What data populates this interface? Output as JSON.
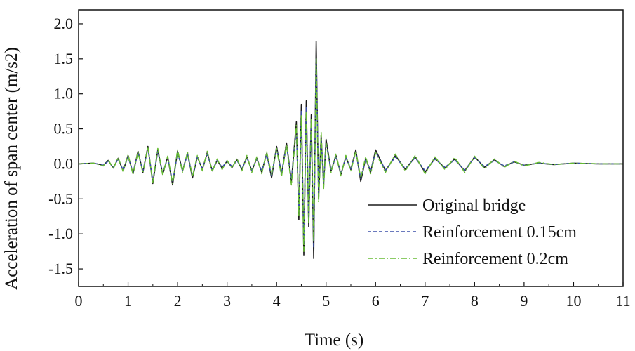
{
  "chart_data": {
    "type": "line",
    "title": "",
    "xlabel": "Time (s)",
    "ylabel": "Acceleration of span center (m/s2)",
    "xlim": [
      0,
      11
    ],
    "ylim": [
      -1.75,
      2.2
    ],
    "xticks": [
      "0",
      "1",
      "2",
      "3",
      "4",
      "5",
      "6",
      "7",
      "8",
      "9",
      "10",
      "11"
    ],
    "yticks": [
      "-1.5",
      "-1.0",
      "-0.5",
      "0.0",
      "0.5",
      "1.0",
      "1.5",
      "2.0"
    ],
    "grid": false,
    "legend_position": "bottom-right",
    "series": [
      {
        "name": "Original bridge",
        "color": "#1a1a1a",
        "style": "solid",
        "x": [
          0,
          0.3,
          0.5,
          0.6,
          0.7,
          0.8,
          0.9,
          1.0,
          1.1,
          1.2,
          1.3,
          1.4,
          1.5,
          1.6,
          1.7,
          1.8,
          1.9,
          2.0,
          2.1,
          2.2,
          2.3,
          2.4,
          2.5,
          2.6,
          2.7,
          2.8,
          2.9,
          3.0,
          3.1,
          3.2,
          3.3,
          3.4,
          3.5,
          3.6,
          3.7,
          3.8,
          3.9,
          4.0,
          4.1,
          4.2,
          4.3,
          4.4,
          4.45,
          4.5,
          4.55,
          4.6,
          4.65,
          4.7,
          4.75,
          4.8,
          4.85,
          4.9,
          4.95,
          5.0,
          5.1,
          5.2,
          5.3,
          5.4,
          5.5,
          5.6,
          5.7,
          5.8,
          5.9,
          6.0,
          6.2,
          6.4,
          6.6,
          6.8,
          7.0,
          7.2,
          7.4,
          7.6,
          7.8,
          8.0,
          8.2,
          8.4,
          8.6,
          8.8,
          9.0,
          9.3,
          9.6,
          10.0,
          10.5,
          11.0
        ],
        "values": [
          0,
          0.01,
          -0.02,
          0.05,
          -0.06,
          0.08,
          -0.1,
          0.12,
          -0.14,
          0.18,
          -0.12,
          0.25,
          -0.28,
          0.2,
          -0.15,
          0.1,
          -0.3,
          0.18,
          -0.1,
          0.15,
          -0.2,
          0.1,
          -0.08,
          0.16,
          -0.1,
          0.05,
          -0.06,
          0.04,
          -0.05,
          0.06,
          -0.08,
          0.1,
          -0.1,
          0.08,
          -0.12,
          0.15,
          -0.2,
          0.25,
          -0.15,
          0.3,
          -0.25,
          0.6,
          -0.8,
          0.85,
          -1.3,
          0.9,
          -0.9,
          0.7,
          -1.35,
          1.75,
          -0.5,
          0.4,
          -0.3,
          0.35,
          -0.1,
          0.12,
          -0.15,
          0.1,
          -0.08,
          0.2,
          -0.25,
          0.08,
          -0.12,
          0.2,
          -0.1,
          0.12,
          -0.08,
          0.1,
          -0.12,
          0.08,
          -0.06,
          0.07,
          -0.1,
          0.1,
          -0.05,
          0.06,
          -0.04,
          0.03,
          -0.02,
          0.01,
          -0.01,
          0.01,
          0,
          0
        ]
      },
      {
        "name": "Reinforcement 0.15cm",
        "color": "#3a4fa8",
        "style": "dashed",
        "x": [
          0,
          0.3,
          0.5,
          0.6,
          0.7,
          0.8,
          0.9,
          1.0,
          1.1,
          1.2,
          1.3,
          1.4,
          1.5,
          1.6,
          1.7,
          1.8,
          1.9,
          2.0,
          2.1,
          2.2,
          2.3,
          2.4,
          2.5,
          2.6,
          2.7,
          2.8,
          2.9,
          3.0,
          3.1,
          3.2,
          3.3,
          3.4,
          3.5,
          3.6,
          3.7,
          3.8,
          3.9,
          4.0,
          4.1,
          4.2,
          4.3,
          4.4,
          4.45,
          4.5,
          4.55,
          4.6,
          4.65,
          4.7,
          4.75,
          4.8,
          4.85,
          4.9,
          4.95,
          5.0,
          5.1,
          5.2,
          5.3,
          5.4,
          5.5,
          5.6,
          5.7,
          5.8,
          5.9,
          6.0,
          6.2,
          6.4,
          6.6,
          6.8,
          7.0,
          7.2,
          7.4,
          7.6,
          7.8,
          8.0,
          8.2,
          8.4,
          8.6,
          8.8,
          9.0,
          9.3,
          9.6,
          10.0,
          10.5,
          11.0
        ],
        "values": [
          0,
          0.01,
          -0.02,
          0.04,
          -0.05,
          0.07,
          -0.09,
          0.1,
          -0.12,
          0.16,
          -0.1,
          0.22,
          -0.24,
          0.18,
          -0.13,
          0.09,
          -0.26,
          0.16,
          -0.09,
          0.13,
          -0.17,
          0.09,
          -0.07,
          0.14,
          -0.09,
          0.05,
          -0.05,
          0.04,
          -0.04,
          0.05,
          -0.07,
          0.09,
          -0.09,
          0.07,
          -0.1,
          0.13,
          -0.17,
          0.22,
          -0.13,
          0.26,
          -0.22,
          0.5,
          -0.7,
          0.75,
          -1.15,
          0.8,
          -0.8,
          0.6,
          -1.2,
          1.5,
          -0.45,
          0.35,
          -0.27,
          0.3,
          -0.09,
          0.1,
          -0.13,
          0.09,
          -0.07,
          0.17,
          -0.21,
          0.07,
          -0.1,
          0.17,
          -0.09,
          0.1,
          -0.07,
          0.09,
          -0.1,
          0.07,
          -0.05,
          0.06,
          -0.09,
          0.09,
          -0.04,
          0.05,
          -0.03,
          0.03,
          -0.02,
          0.01,
          -0.01,
          0.01,
          0,
          0
        ]
      },
      {
        "name": "Reinforcement 0.2cm",
        "color": "#66bb33",
        "style": "dashdot",
        "x": [
          0,
          0.3,
          0.5,
          0.6,
          0.7,
          0.8,
          0.9,
          1.0,
          1.1,
          1.2,
          1.3,
          1.4,
          1.5,
          1.6,
          1.7,
          1.8,
          1.9,
          2.0,
          2.1,
          2.2,
          2.3,
          2.4,
          2.5,
          2.6,
          2.7,
          2.8,
          2.9,
          3.0,
          3.1,
          3.2,
          3.3,
          3.4,
          3.5,
          3.6,
          3.7,
          3.8,
          3.9,
          4.0,
          4.1,
          4.2,
          4.3,
          4.4,
          4.45,
          4.5,
          4.55,
          4.6,
          4.65,
          4.7,
          4.75,
          4.8,
          4.85,
          4.9,
          4.95,
          5.0,
          5.1,
          5.2,
          5.3,
          5.4,
          5.5,
          5.6,
          5.7,
          5.8,
          5.9,
          6.0,
          6.2,
          6.4,
          6.6,
          6.8,
          7.0,
          7.2,
          7.4,
          7.6,
          7.8,
          8.0,
          8.2,
          8.4,
          8.6,
          8.8,
          9.0,
          9.3,
          9.6,
          10.0,
          10.5,
          11.0
        ],
        "values": [
          0,
          0.01,
          -0.03,
          0.06,
          -0.07,
          0.09,
          -0.11,
          0.13,
          -0.15,
          0.17,
          -0.13,
          0.24,
          -0.26,
          0.22,
          -0.16,
          0.11,
          -0.28,
          0.2,
          -0.12,
          0.17,
          -0.18,
          0.12,
          -0.1,
          0.18,
          -0.11,
          0.07,
          -0.08,
          0.05,
          -0.06,
          0.08,
          -0.1,
          0.12,
          -0.12,
          0.1,
          -0.14,
          0.17,
          -0.15,
          0.22,
          -0.18,
          0.28,
          -0.3,
          0.55,
          -0.75,
          0.7,
          -1.25,
          0.75,
          -0.85,
          0.65,
          -1.1,
          1.5,
          -0.55,
          0.45,
          -0.35,
          0.3,
          -0.12,
          0.14,
          -0.17,
          0.12,
          -0.1,
          0.18,
          -0.2,
          0.1,
          -0.14,
          0.16,
          -0.12,
          0.14,
          -0.1,
          0.12,
          -0.14,
          0.1,
          -0.08,
          0.09,
          -0.12,
          0.11,
          -0.07,
          0.07,
          -0.05,
          0.04,
          -0.03,
          0.02,
          -0.01,
          0.01,
          0,
          0
        ]
      }
    ]
  }
}
